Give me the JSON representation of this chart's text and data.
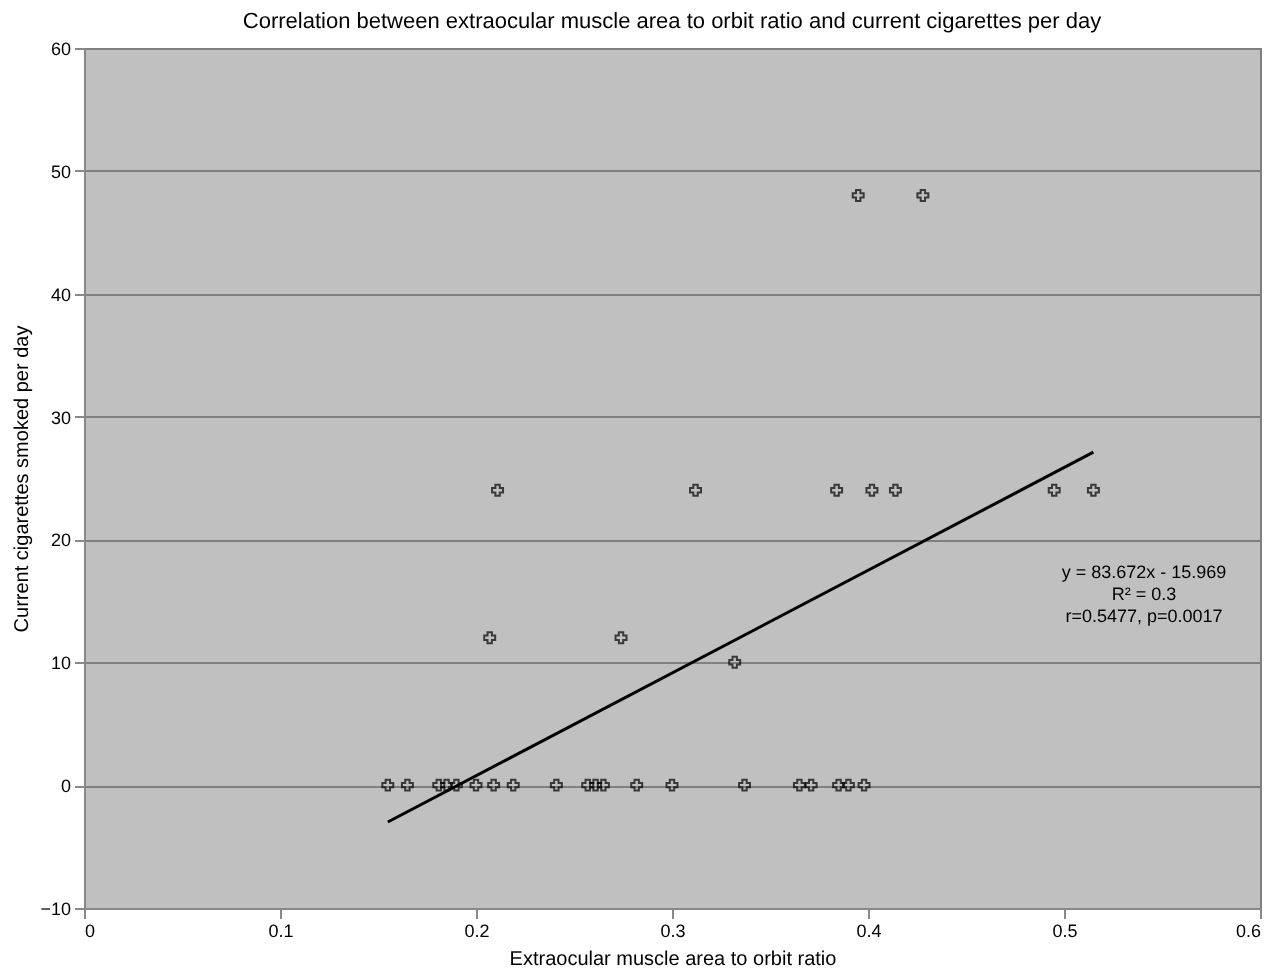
{
  "chart_data": {
    "type": "scatter",
    "title": "Correlation between extraocular muscle area to orbit ratio and current cigarettes per day",
    "xlabel": "Extraocular muscle area to orbit ratio",
    "ylabel": "Current cigarettes smoked per day",
    "series": [
      {
        "color": "#000000",
        "marker": "cross",
        "x": [
          0.211,
          0.312,
          0.384,
          0.402,
          0.414,
          0.495,
          0.515,
          0.395,
          0.428,
          0.207,
          0.274,
          0.332,
          0.155,
          0.165,
          0.181,
          0.185,
          0.19,
          0.2,
          0.209,
          0.219,
          0.241,
          0.257,
          0.261,
          0.265,
          0.282,
          0.3,
          0.337,
          0.365,
          0.371,
          0.385,
          0.39,
          0.398
        ],
        "values": [
          24,
          24,
          24,
          24,
          24,
          24,
          24,
          48,
          48,
          12,
          12,
          10,
          0,
          0,
          0,
          0,
          0,
          0,
          0,
          0,
          0,
          0,
          0,
          0,
          0,
          0,
          0,
          0,
          0,
          0,
          0,
          0
        ]
      },
      {
        "type": "line",
        "color": "#000000",
        "line_style": "solid",
        "x": [
          0.155,
          0.515
        ],
        "values": [
          -3.0,
          27.1
        ]
      }
    ],
    "annotations": [
      "y = 83.672x - 15.969",
      "R² = 0.3",
      "r=0.5477, p=0.0017"
    ],
    "xlim": [
      0,
      0.6
    ],
    "xticks": [
      0,
      0.1,
      0.2,
      0.3,
      0.4,
      0.5,
      0.6
    ],
    "ylim": [
      -10,
      60
    ],
    "yticks": [
      -10,
      0,
      10,
      20,
      30,
      40,
      50,
      60
    ],
    "grid": "y"
  }
}
